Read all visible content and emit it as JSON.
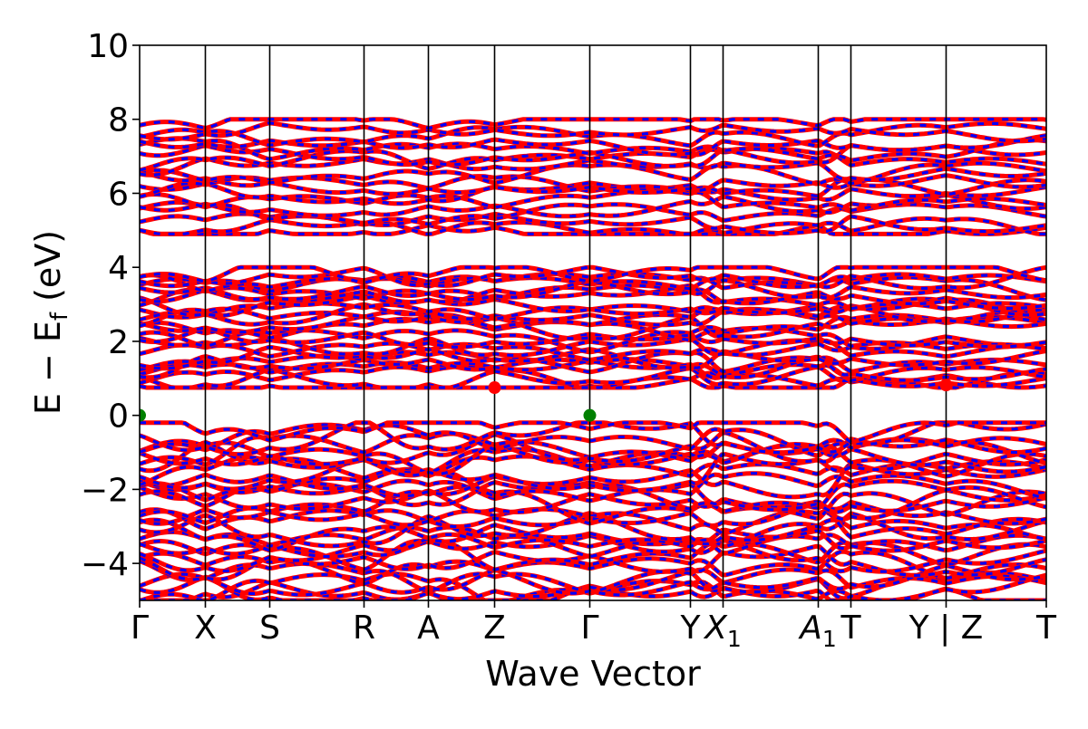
{
  "chart_data": {
    "type": "line",
    "xlabel": "Wave Vector",
    "ylabel": "E − E",
    "ylabel_sub": "f",
    "ylabel_unit": " (eV)",
    "ylim": [
      -5,
      10
    ],
    "yticks": [
      -4,
      -2,
      0,
      2,
      4,
      6,
      8,
      10
    ],
    "ytick_labels": [
      "−4",
      "−2",
      "0",
      "2",
      "4",
      "6",
      "8",
      "10"
    ],
    "kpath": [
      {
        "label": "Γ",
        "x": 0.0
      },
      {
        "label": "X",
        "x": 0.0725
      },
      {
        "label": "S",
        "x": 0.1435
      },
      {
        "label": "R",
        "x": 0.2475
      },
      {
        "label": "A",
        "x": 0.3185
      },
      {
        "label": "Z",
        "x": 0.3915
      },
      {
        "label": "Γ",
        "x": 0.4965
      },
      {
        "label": "Y",
        "x": 0.6075
      },
      {
        "label": "X",
        "sub": "1",
        "italic": true,
        "x": 0.6435
      },
      {
        "label": "A",
        "sub": "1",
        "italic": true,
        "x": 0.7485
      },
      {
        "label": "T",
        "x": 0.7845
      },
      {
        "label": "Y | Z",
        "x": 0.8895
      },
      {
        "label": "T",
        "x": 1.0
      }
    ],
    "series": [
      {
        "role": "spin-up",
        "color": "#ff0000",
        "style": "solid"
      },
      {
        "role": "spin-down",
        "color": "#0000ff",
        "style": "dashed"
      }
    ],
    "extrema_points": [
      {
        "kind": "VBM",
        "x": 0.0,
        "y": 0.0,
        "color": "#008000"
      },
      {
        "kind": "VBM",
        "x": 0.4965,
        "y": 0.0,
        "color": "#008000"
      },
      {
        "kind": "CBM",
        "x": 0.3915,
        "y": 0.75,
        "color": "#ff0000"
      },
      {
        "kind": "CBM",
        "x": 0.8895,
        "y": 0.82,
        "color": "#ff0000"
      }
    ],
    "band_groups": [
      {
        "range": [
          -5.0,
          -0.2
        ],
        "count": 30
      },
      {
        "range": [
          0.75,
          4.0
        ],
        "count": 24
      },
      {
        "range": [
          4.9,
          8.0
        ],
        "count": 18
      }
    ],
    "grid": false,
    "legend": "none"
  }
}
